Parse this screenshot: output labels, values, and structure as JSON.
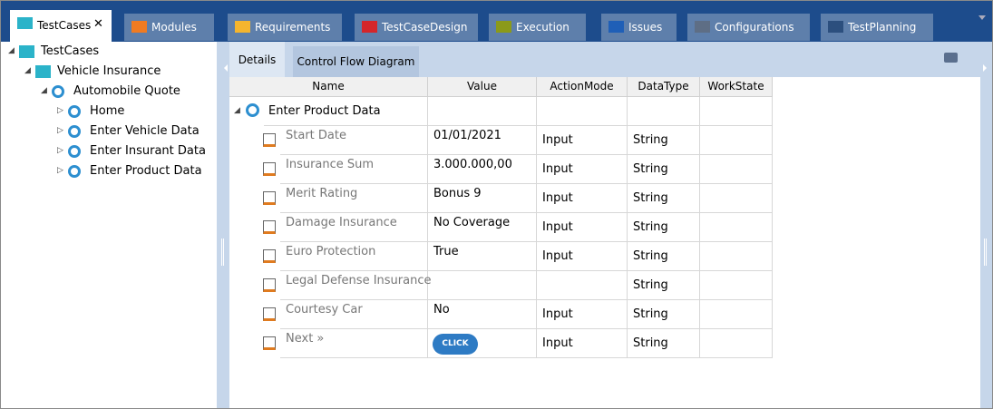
{
  "tabs": [
    {
      "label": "TestCases",
      "close": "✕"
    },
    {
      "label": "Modules"
    },
    {
      "label": "Requirements"
    },
    {
      "label": "TestCaseDesign"
    },
    {
      "label": "Execution"
    },
    {
      "label": "Issues"
    },
    {
      "label": "Configurations"
    },
    {
      "label": "TestPlanning"
    }
  ],
  "tree": {
    "label": "TestCases",
    "children": [
      {
        "label": "Vehicle Insurance",
        "children": [
          {
            "label": "Automobile Quote",
            "children": [
              {
                "label": "Home"
              },
              {
                "label": "Enter Vehicle Data"
              },
              {
                "label": "Enter Insurant Data"
              },
              {
                "label": "Enter Product Data"
              }
            ]
          }
        ]
      }
    ]
  },
  "detail_tabs": [
    "Details",
    "Control Flow Diagram"
  ],
  "table": {
    "columns": [
      "Name",
      "Value",
      "ActionMode",
      "DataType",
      "WorkState"
    ],
    "group": "Enter Product Data",
    "rows": [
      {
        "name": "Start Date",
        "value": "01/01/2021",
        "action_mode": "Input",
        "data_type": "String"
      },
      {
        "name": "Insurance Sum",
        "value": "3.000.000,00",
        "action_mode": "Input",
        "data_type": "String"
      },
      {
        "name": "Merit Rating",
        "value": "Bonus 9",
        "action_mode": "Input",
        "data_type": "String"
      },
      {
        "name": "Damage Insurance",
        "value": "No Coverage",
        "action_mode": "Input",
        "data_type": "String"
      },
      {
        "name": "Euro Protection",
        "value": "True",
        "action_mode": "Input",
        "data_type": "String"
      },
      {
        "name": "Legal Defense Insurance",
        "data_type": "String"
      },
      {
        "name": "Courtesy Car",
        "value": "No",
        "action_mode": "Input",
        "data_type": "String"
      },
      {
        "name": "Next »",
        "button": "CLICK",
        "action_mode": "Input",
        "data_type": "String"
      }
    ]
  }
}
